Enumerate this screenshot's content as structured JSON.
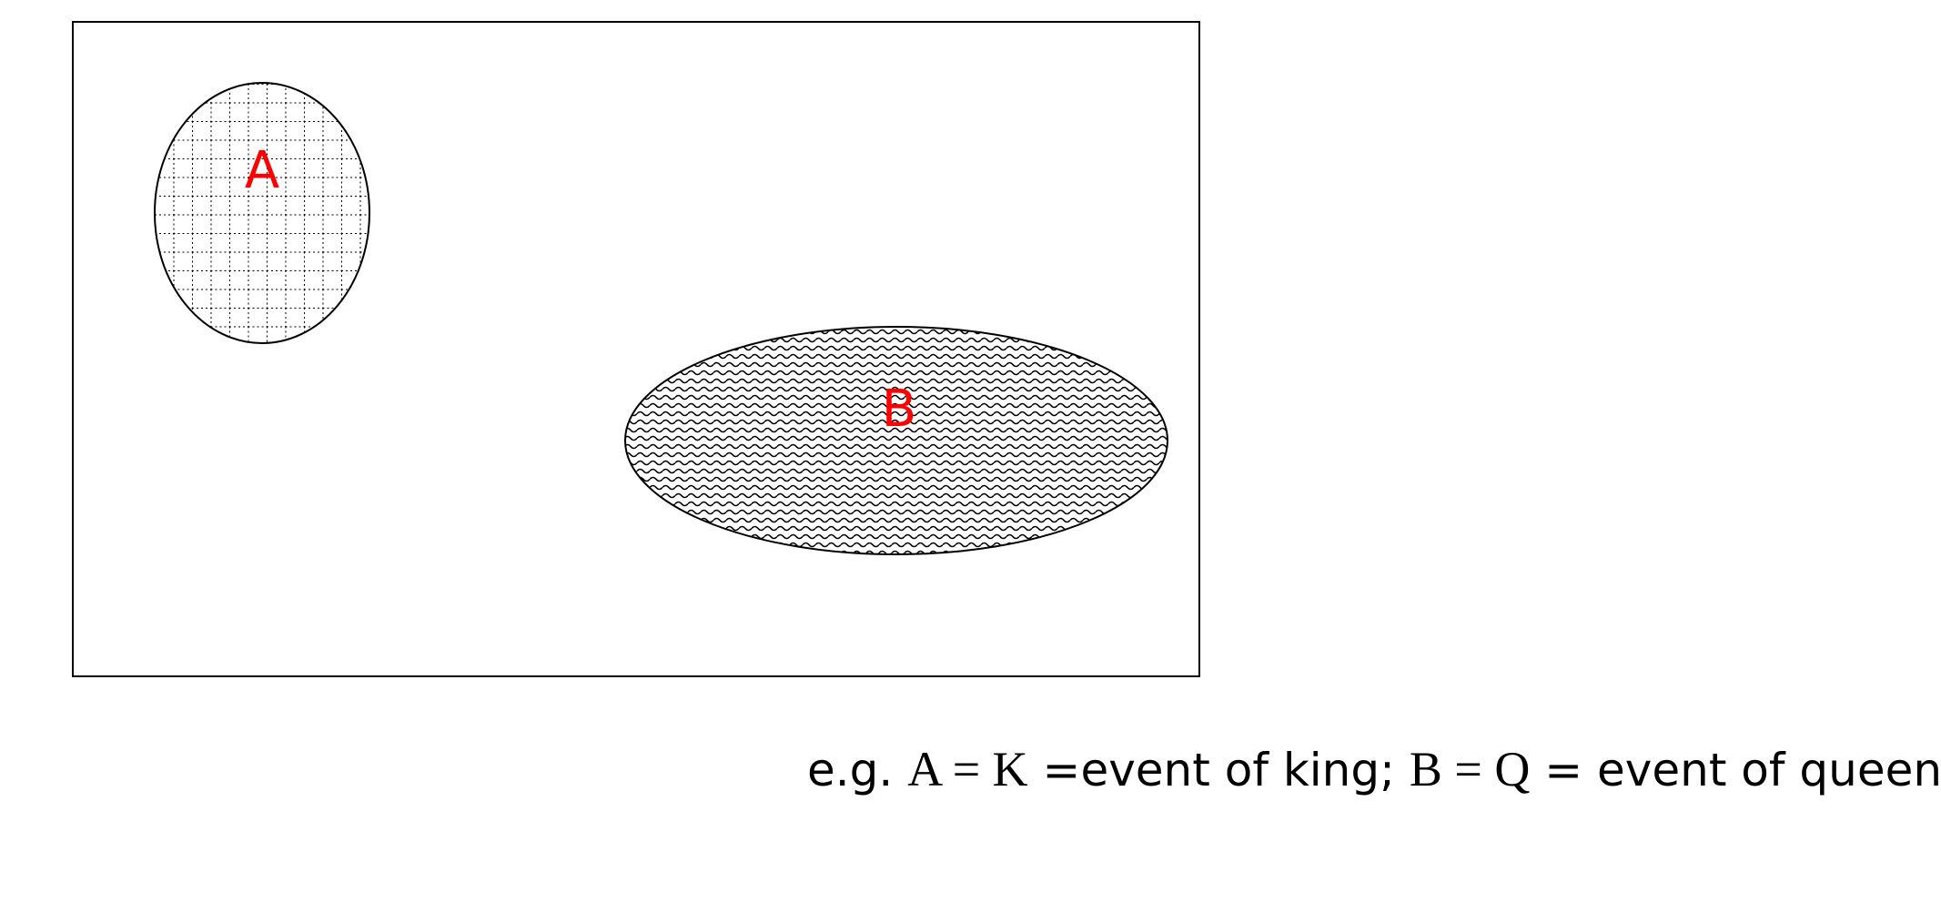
{
  "diagram": {
    "sets": [
      {
        "id": "A",
        "label": "A",
        "pattern": "dotted-grid"
      },
      {
        "id": "B",
        "label": "B",
        "pattern": "wave"
      }
    ],
    "label_color": "#ff0000",
    "outline_color": "#000000"
  },
  "caption": {
    "prefix": "e.g. ",
    "a_symbol": "A = K",
    "a_text": " =event of king; ",
    "b_symbol": "B = Q",
    "b_text": " = event of queen"
  }
}
